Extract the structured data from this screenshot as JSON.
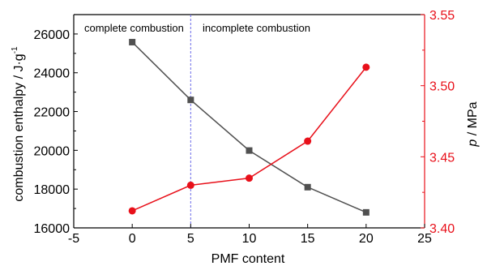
{
  "chart_data": {
    "type": "line",
    "x_label": "PMF content",
    "y_left_label": "combustion enthalpy / J·g",
    "y_left_label_sup": "-1",
    "y_right_label_italic": "p",
    "y_right_label_rest": " / MPa",
    "xlim": [
      -5,
      25
    ],
    "x_ticks": [
      -5,
      0,
      5,
      10,
      15,
      20,
      25
    ],
    "ylim_left": [
      16000,
      27000
    ],
    "y_left_ticks": [
      16000,
      18000,
      20000,
      22000,
      24000,
      26000
    ],
    "ylim_right": [
      3.4,
      3.55
    ],
    "y_right_ticks": [
      "3.40",
      "3.45",
      "3.50",
      "3.55"
    ],
    "divider_x": 5,
    "annotations": {
      "left_region": "complete combustion",
      "right_region": "incomplete combustion"
    },
    "series": [
      {
        "axis": "left",
        "marker": "square",
        "color": "#505050",
        "x": [
          0,
          5,
          10,
          15,
          20
        ],
        "values": [
          25580,
          22600,
          19990,
          18100,
          16800
        ]
      },
      {
        "axis": "right",
        "marker": "circle",
        "color": "#e8101a",
        "x": [
          0,
          5,
          10,
          15,
          20
        ],
        "values": [
          3.412,
          3.43,
          3.435,
          3.461,
          3.513
        ]
      }
    ],
    "colors": {
      "right_axis": "#e8101a",
      "divider": "#6a6ae8"
    }
  }
}
